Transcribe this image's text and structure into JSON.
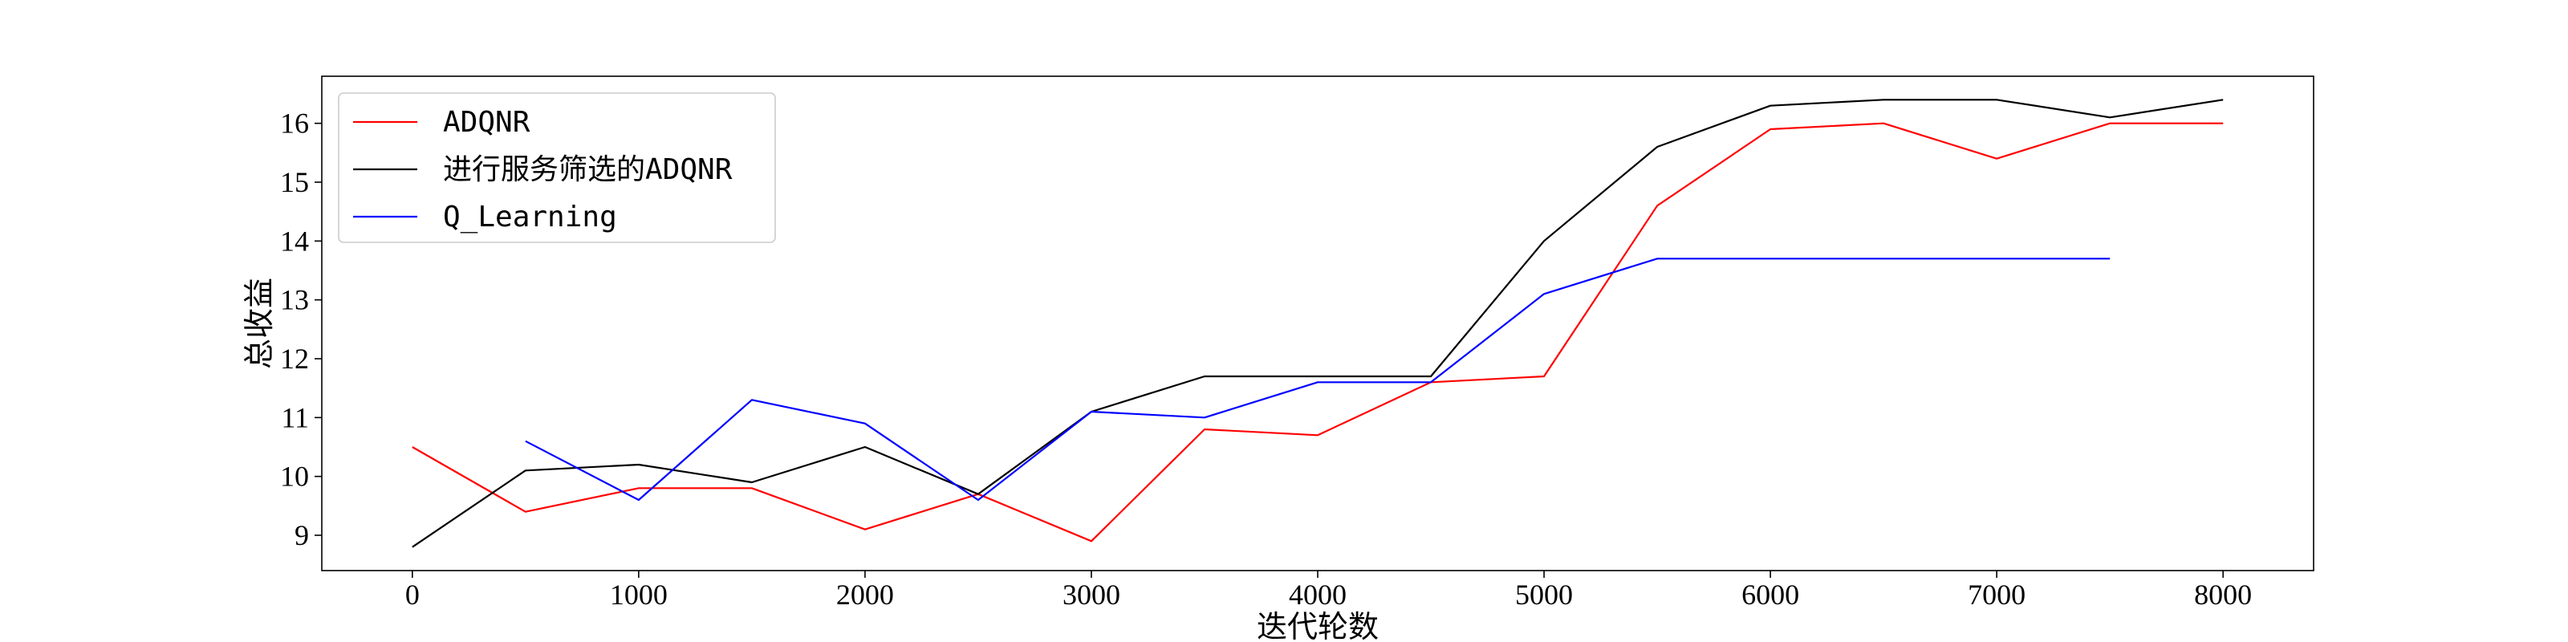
{
  "chart_data": {
    "type": "line",
    "title": "",
    "xlabel": "迭代轮数",
    "ylabel": "总收益",
    "xlim": [
      -400,
      8400
    ],
    "ylim": [
      8.4,
      16.8
    ],
    "xticks": [
      0,
      1000,
      2000,
      3000,
      4000,
      5000,
      6000,
      7000,
      8000
    ],
    "xtick_labels": [
      "0",
      "1000",
      "2000",
      "3000",
      "4000",
      "5000",
      "6000",
      "7000",
      "8000"
    ],
    "yticks": [
      9,
      10,
      11,
      12,
      13,
      14,
      15,
      16
    ],
    "ytick_labels": [
      "9",
      "10",
      "11",
      "12",
      "13",
      "14",
      "15",
      "16"
    ],
    "grid": false,
    "legend_position": "top-left",
    "series": [
      {
        "name": "ADQNR",
        "color": "#ff0000",
        "x": [
          0,
          500,
          1000,
          1500,
          2000,
          2500,
          3000,
          3500,
          4000,
          4500,
          5000,
          5500,
          6000,
          6500,
          7000,
          7500,
          8000
        ],
        "y": [
          10.5,
          9.4,
          9.8,
          9.8,
          9.1,
          9.7,
          8.9,
          10.8,
          10.7,
          11.6,
          11.7,
          14.6,
          15.9,
          16.0,
          15.4,
          16.0,
          16.0
        ]
      },
      {
        "name": "进行服务筛选的ADQNR",
        "color": "#000000",
        "x": [
          0,
          500,
          1000,
          1500,
          2000,
          2500,
          3000,
          3500,
          4000,
          4500,
          5000,
          5500,
          6000,
          6500,
          7000,
          7500,
          8000
        ],
        "y": [
          8.8,
          10.1,
          10.2,
          9.9,
          10.5,
          9.7,
          11.1,
          11.7,
          11.7,
          11.7,
          14.0,
          15.6,
          16.3,
          16.4,
          16.4,
          16.1,
          16.4
        ]
      },
      {
        "name": "Q_Learning",
        "color": "#0000ff",
        "x": [
          500,
          1000,
          1500,
          2000,
          2500,
          3000,
          3500,
          4000,
          4500,
          5000,
          5500,
          6000,
          6500,
          7000,
          7500
        ],
        "y": [
          10.6,
          9.6,
          11.3,
          10.9,
          9.6,
          11.1,
          11.0,
          11.6,
          11.6,
          13.1,
          13.7,
          13.7,
          13.7,
          13.7,
          13.7
        ]
      }
    ]
  }
}
